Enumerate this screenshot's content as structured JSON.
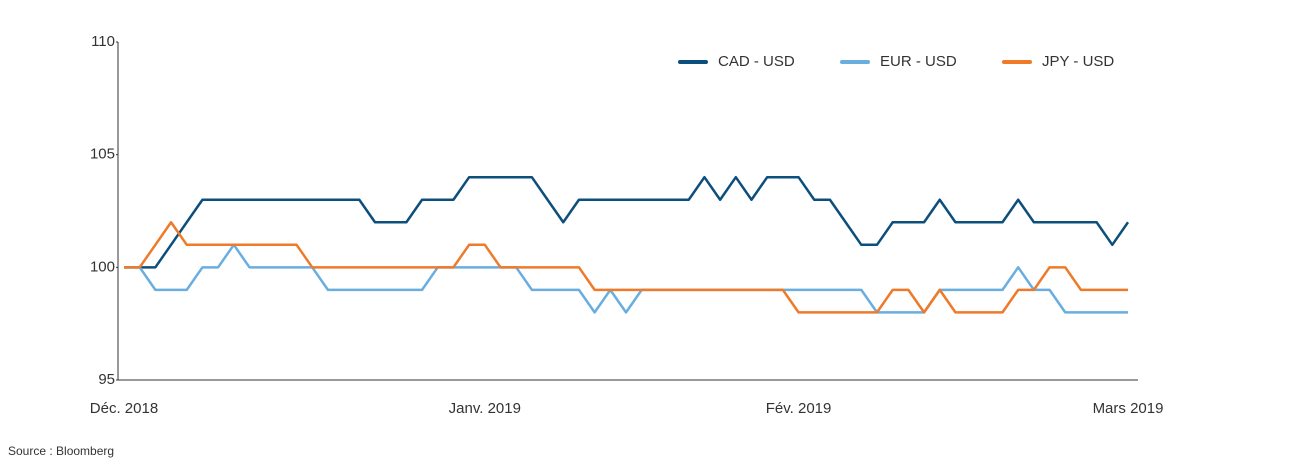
{
  "chart_data": {
    "type": "line",
    "categories": [
      "Déc. 2018",
      null,
      null,
      null,
      null,
      null,
      null,
      null,
      null,
      null,
      null,
      null,
      null,
      null,
      null,
      null,
      null,
      null,
      null,
      null,
      null,
      null,
      null,
      "Janv. 2019",
      null,
      null,
      null,
      null,
      null,
      null,
      null,
      null,
      null,
      null,
      null,
      null,
      null,
      null,
      null,
      null,
      null,
      null,
      null,
      "Fév. 2019",
      null,
      null,
      null,
      null,
      null,
      null,
      null,
      null,
      null,
      null,
      null,
      null,
      null,
      null,
      null,
      null,
      null,
      null,
      null,
      null,
      "Mars 2019"
    ],
    "series": [
      {
        "name": "CAD - USD",
        "color": "#0d4f7c",
        "values": [
          100,
          100,
          100,
          101,
          102,
          103,
          103,
          103,
          103,
          103,
          103,
          103,
          103,
          103,
          103,
          103,
          102,
          102,
          102,
          103,
          103,
          103,
          104,
          104,
          104,
          104,
          104,
          103,
          102,
          103,
          103,
          103,
          103,
          103,
          103,
          103,
          103,
          104,
          103,
          104,
          103,
          104,
          104,
          104,
          103,
          103,
          102,
          101,
          101,
          102,
          102,
          102,
          103,
          102,
          102,
          102,
          102,
          103,
          102,
          102,
          102,
          102,
          102,
          101,
          102
        ]
      },
      {
        "name": "EUR - USD",
        "color": "#6aaee0",
        "values": [
          100,
          100,
          99,
          99,
          99,
          100,
          100,
          101,
          100,
          100,
          100,
          100,
          100,
          99,
          99,
          99,
          99,
          99,
          99,
          99,
          100,
          100,
          100,
          100,
          100,
          100,
          99,
          99,
          99,
          99,
          98,
          99,
          98,
          99,
          99,
          99,
          99,
          99,
          99,
          99,
          99,
          99,
          99,
          99,
          99,
          99,
          99,
          99,
          98,
          98,
          98,
          98,
          99,
          99,
          99,
          99,
          99,
          100,
          99,
          99,
          98,
          98,
          98,
          98,
          98
        ]
      },
      {
        "name": "JPY - USD",
        "color": "#ee7a2a",
        "values": [
          100,
          100,
          101,
          102,
          101,
          101,
          101,
          101,
          101,
          101,
          101,
          101,
          100,
          100,
          100,
          100,
          100,
          100,
          100,
          100,
          100,
          100,
          101,
          101,
          100,
          100,
          100,
          100,
          100,
          100,
          99,
          99,
          99,
          99,
          99,
          99,
          99,
          99,
          99,
          99,
          99,
          99,
          99,
          98,
          98,
          98,
          98,
          98,
          98,
          99,
          99,
          98,
          99,
          98,
          98,
          98,
          98,
          99,
          99,
          100,
          100,
          99,
          99,
          99,
          99
        ]
      }
    ],
    "ylim": [
      95,
      110
    ],
    "yticks": [
      95,
      100,
      105,
      110
    ],
    "grid": false,
    "legend": "top-right",
    "source": "Source : Bloomberg"
  }
}
